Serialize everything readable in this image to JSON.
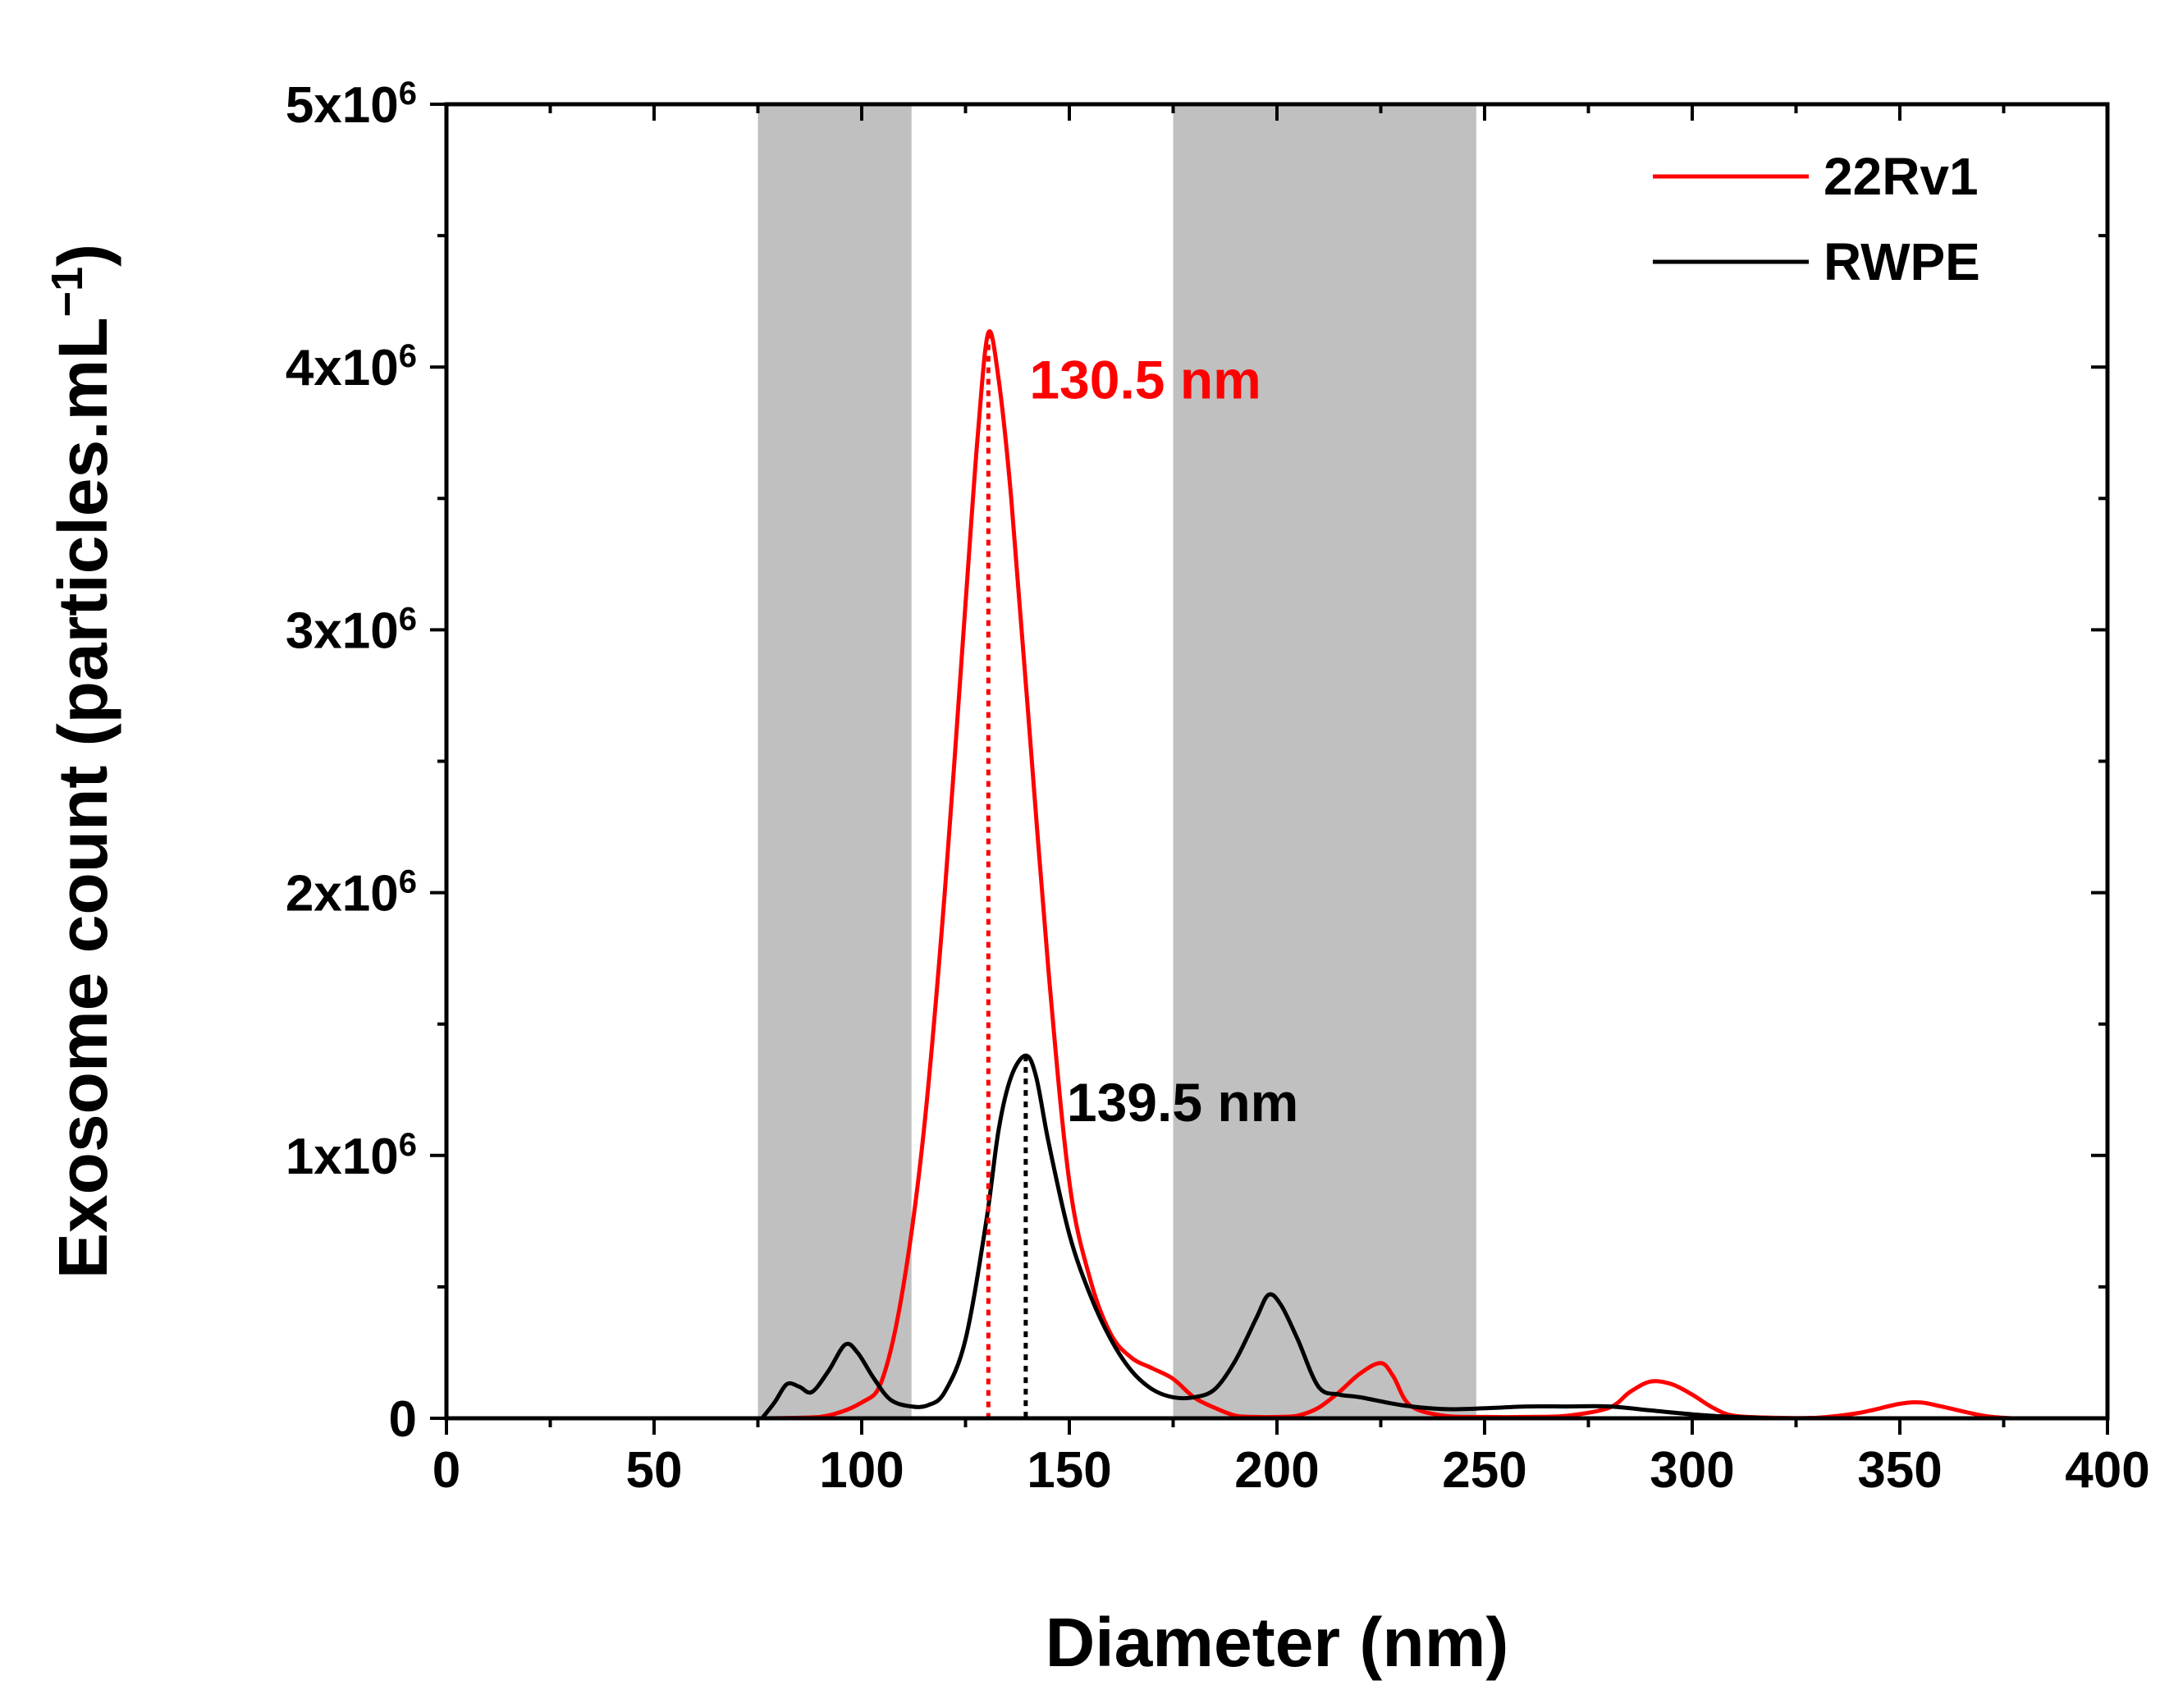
{
  "chart_data": {
    "type": "line",
    "title": "",
    "xlabel": "Diameter (nm)",
    "ylabel": "Exosome count (particles.mL",
    "ylabel_sup": "−1",
    "ylabel_close": ")",
    "xlim": [
      0,
      400
    ],
    "ylim": [
      0,
      5000000
    ],
    "x_ticks": [
      0,
      50,
      100,
      150,
      200,
      250,
      300,
      350,
      400
    ],
    "x_tick_labels": [
      "0",
      "50",
      "100",
      "150",
      "200",
      "250",
      "300",
      "350",
      "400"
    ],
    "y_ticks": [
      0,
      1000000,
      2000000,
      3000000,
      4000000,
      5000000
    ],
    "y_tick_labels": [
      {
        "base": "0",
        "exp": ""
      },
      {
        "base": "1x10",
        "exp": "6"
      },
      {
        "base": "2x10",
        "exp": "6"
      },
      {
        "base": "3x10",
        "exp": "6"
      },
      {
        "base": "4x10",
        "exp": "6"
      },
      {
        "base": "5x10",
        "exp": "6"
      }
    ],
    "shaded_bands": [
      {
        "x_start": 75,
        "x_end": 112,
        "color": "#c0c0c0"
      },
      {
        "x_start": 175,
        "x_end": 248,
        "color": "#c0c0c0"
      }
    ],
    "legend_position": "top-right",
    "series": [
      {
        "name": "22Rv1",
        "color": "#ff0000",
        "x": [
          76,
          90,
          100,
          105,
          110,
          115,
          120,
          125,
          128,
          130.5,
          133,
          136,
          140,
          145,
          150,
          155,
          160,
          165,
          170,
          175,
          180,
          185,
          190,
          195,
          200,
          205,
          210,
          215,
          220,
          225,
          228,
          232,
          240,
          250,
          260,
          270,
          280,
          285,
          290,
          295,
          300,
          305,
          310,
          320,
          330,
          340,
          350,
          355,
          360,
          370,
          377
        ],
        "values": [
          0,
          5000,
          60000,
          150000,
          500000,
          1100000,
          2000000,
          3100000,
          3750000,
          4130000,
          3950000,
          3500000,
          2700000,
          1700000,
          900000,
          530000,
          320000,
          230000,
          190000,
          150000,
          80000,
          40000,
          10000,
          5000,
          5000,
          10000,
          40000,
          100000,
          170000,
          210000,
          160000,
          50000,
          10000,
          5000,
          5000,
          10000,
          40000,
          100000,
          140000,
          130000,
          90000,
          40000,
          10000,
          2000,
          2000,
          20000,
          55000,
          60000,
          45000,
          10000,
          0
        ]
      },
      {
        "name": "RWPE",
        "color": "#000000",
        "x": [
          76,
          79,
          82,
          85,
          88,
          92,
          96,
          99,
          103,
          107,
          112,
          116,
          120,
          125,
          130,
          133,
          136,
          139.5,
          142,
          145,
          150,
          155,
          160,
          165,
          170,
          175,
          180,
          185,
          190,
          195,
          198,
          201,
          205,
          210,
          215,
          220,
          230,
          240,
          250,
          260,
          270,
          280,
          290,
          300,
          310,
          320
        ],
        "values": [
          0,
          60000,
          130000,
          120000,
          100000,
          180000,
          280000,
          250000,
          150000,
          70000,
          45000,
          50000,
          100000,
          300000,
          750000,
          1100000,
          1300000,
          1380000,
          1300000,
          1050000,
          700000,
          470000,
          300000,
          180000,
          110000,
          80000,
          80000,
          110000,
          220000,
          380000,
          470000,
          430000,
          300000,
          120000,
          90000,
          80000,
          50000,
          35000,
          38000,
          45000,
          45000,
          45000,
          30000,
          15000,
          5000,
          0
        ]
      }
    ],
    "annotations": [
      {
        "text": "130.5 nm",
        "x": 130.5,
        "peak": 4130000,
        "color": "#ff0000"
      },
      {
        "text": "139.5 nm",
        "x": 139.5,
        "peak": 1380000,
        "color": "#000000"
      }
    ]
  }
}
